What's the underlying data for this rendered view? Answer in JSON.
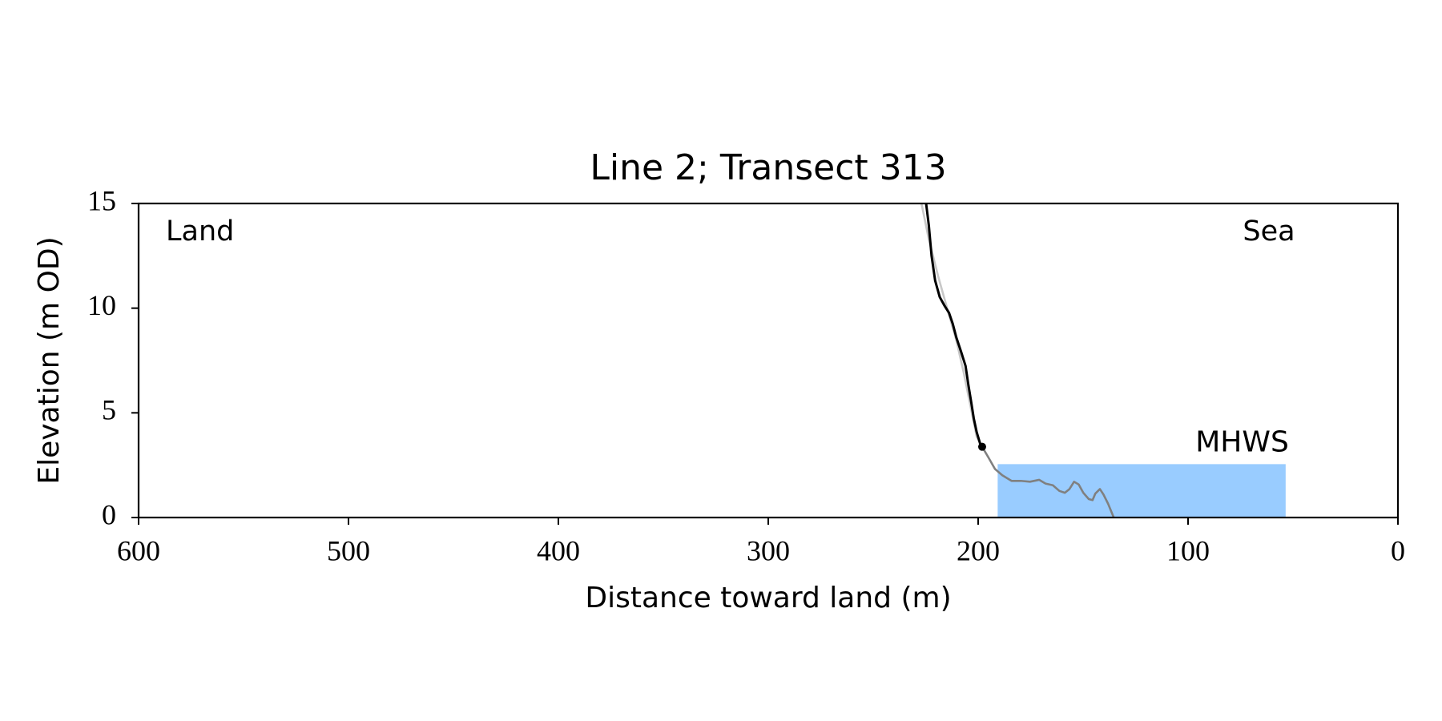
{
  "chart_data": {
    "type": "line",
    "title": "Line 2; Transect 313",
    "x_label": "Distance toward land (m)",
    "y_label": "Elevation (m OD)",
    "xlim": [
      600,
      0
    ],
    "ylim": [
      0,
      15
    ],
    "xticks": [
      600,
      500,
      400,
      300,
      200,
      100,
      0
    ],
    "yticks": [
      0,
      5,
      10,
      15
    ],
    "corner_labels": {
      "left": "Land",
      "right": "Sea"
    },
    "shaded_region": {
      "label": "MHWS",
      "level": 2.55,
      "x": [
        190.7,
        53.5
      ],
      "color": "#99ccff",
      "label_color": "#6699cc"
    },
    "series": [
      {
        "color": "#c8c8c8",
        "x": [
          227.0,
          223.5,
          219.1,
          214.8,
          210.4,
          206.9,
          203.8,
          200.7,
          198.1
        ],
        "values": [
          15.0,
          13.29,
          11.54,
          10.0,
          8.47,
          6.93,
          5.39,
          3.86,
          3.38
        ]
      },
      {
        "color": "#808080",
        "x": [
          198.1,
          195.0,
          192.0,
          188.5,
          184.1,
          179.7,
          175.3,
          170.9,
          167.9,
          164.4,
          161.3,
          158.7,
          156.5,
          154.3,
          152.1,
          149.9,
          147.3,
          145.5,
          144.2,
          142.0,
          140.3,
          138.1,
          135.4
        ],
        "values": [
          3.38,
          2.85,
          2.32,
          2.02,
          1.75,
          1.75,
          1.71,
          1.8,
          1.62,
          1.54,
          1.27,
          1.18,
          1.36,
          1.71,
          1.58,
          1.18,
          0.88,
          0.83,
          1.14,
          1.36,
          1.1,
          0.66,
          0
        ]
      },
      {
        "color": "#000000",
        "x": [
          224.8,
          223.5,
          222.2,
          220.5,
          218.3,
          216.1,
          213.9,
          212.1,
          210.4,
          208.2,
          206.0,
          204.7,
          203.4,
          202.1,
          200.7,
          199.0,
          198.1
        ],
        "values": [
          15.0,
          13.95,
          12.5,
          11.32,
          10.53,
          10.13,
          9.78,
          9.25,
          8.6,
          7.94,
          7.24,
          6.36,
          5.57,
          4.74,
          4.08,
          3.51,
          3.38
        ]
      },
      {
        "color": "#000000",
        "marker": "o",
        "x": [
          198.1
        ],
        "values": [
          3.38
        ]
      }
    ]
  }
}
